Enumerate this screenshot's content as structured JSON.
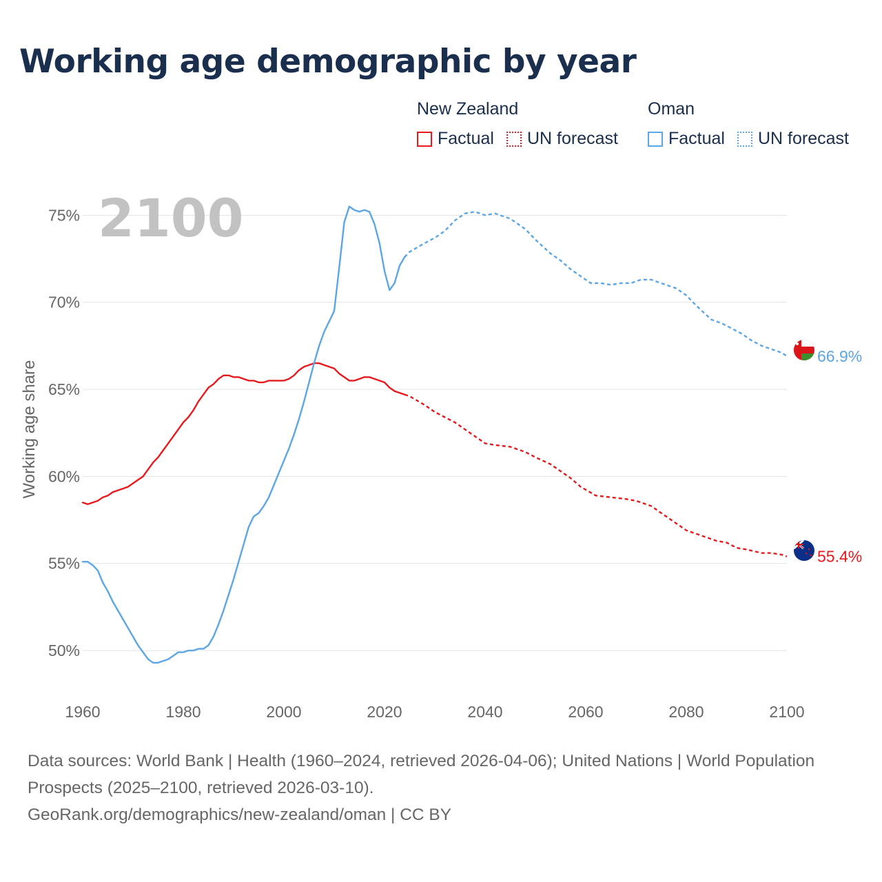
{
  "title": "Working age demographic by year",
  "legend": {
    "groups": [
      {
        "name": "New Zealand",
        "factual_label": "Factual",
        "forecast_label": "UN forecast",
        "color": "#e8191c"
      },
      {
        "name": "Oman",
        "factual_label": "Factual",
        "forecast_label": "UN forecast",
        "color": "#5aa6e6"
      }
    ]
  },
  "footer": {
    "sources": "Data sources: World Bank | Health (1960–2024, retrieved 2026-04-06); United Nations | World Population Prospects (2025–2100, retrieved 2026-03-10).",
    "credit": "GeoRank.org/demographics/new-zealand/oman | CC BY"
  },
  "chart_data": {
    "type": "line",
    "title": "Working age demographic by year",
    "xlabel": "",
    "ylabel": "Working age share",
    "year_label": "2100",
    "xlim": [
      1960,
      2100
    ],
    "ylim": [
      48.5,
      76.2
    ],
    "xticks": [
      1960,
      1980,
      2000,
      2020,
      2040,
      2060,
      2080,
      2100
    ],
    "xtick_labels": [
      "1960",
      "1980",
      "2000",
      "2020",
      "2040",
      "2060",
      "2080",
      "2100"
    ],
    "yticks": [
      50,
      55,
      60,
      65,
      70,
      75
    ],
    "ytick_labels": [
      "50%",
      "55%",
      "60%",
      "65%",
      "70%",
      "75%"
    ],
    "factual_end_year": 2024,
    "series": [
      {
        "name": "New Zealand",
        "color": "#e8191c",
        "end_label": "55.4%",
        "points": [
          [
            1960,
            58.5
          ],
          [
            1961,
            58.4
          ],
          [
            1962,
            58.5
          ],
          [
            1963,
            58.6
          ],
          [
            1964,
            58.8
          ],
          [
            1965,
            58.9
          ],
          [
            1966,
            59.1
          ],
          [
            1967,
            59.2
          ],
          [
            1968,
            59.3
          ],
          [
            1969,
            59.4
          ],
          [
            1970,
            59.6
          ],
          [
            1971,
            59.8
          ],
          [
            1972,
            60.0
          ],
          [
            1973,
            60.4
          ],
          [
            1974,
            60.8
          ],
          [
            1975,
            61.1
          ],
          [
            1976,
            61.5
          ],
          [
            1977,
            61.9
          ],
          [
            1978,
            62.3
          ],
          [
            1979,
            62.7
          ],
          [
            1980,
            63.1
          ],
          [
            1981,
            63.4
          ],
          [
            1982,
            63.8
          ],
          [
            1983,
            64.3
          ],
          [
            1984,
            64.7
          ],
          [
            1985,
            65.1
          ],
          [
            1986,
            65.3
          ],
          [
            1987,
            65.6
          ],
          [
            1988,
            65.8
          ],
          [
            1989,
            65.8
          ],
          [
            1990,
            65.7
          ],
          [
            1991,
            65.7
          ],
          [
            1992,
            65.6
          ],
          [
            1993,
            65.5
          ],
          [
            1994,
            65.5
          ],
          [
            1995,
            65.4
          ],
          [
            1996,
            65.4
          ],
          [
            1997,
            65.5
          ],
          [
            1998,
            65.5
          ],
          [
            1999,
            65.5
          ],
          [
            2000,
            65.5
          ],
          [
            2001,
            65.6
          ],
          [
            2002,
            65.8
          ],
          [
            2003,
            66.1
          ],
          [
            2004,
            66.3
          ],
          [
            2005,
            66.4
          ],
          [
            2006,
            66.5
          ],
          [
            2007,
            66.5
          ],
          [
            2008,
            66.4
          ],
          [
            2009,
            66.3
          ],
          [
            2010,
            66.2
          ],
          [
            2011,
            65.9
          ],
          [
            2012,
            65.7
          ],
          [
            2013,
            65.5
          ],
          [
            2014,
            65.5
          ],
          [
            2015,
            65.6
          ],
          [
            2016,
            65.7
          ],
          [
            2017,
            65.7
          ],
          [
            2018,
            65.6
          ],
          [
            2019,
            65.5
          ],
          [
            2020,
            65.4
          ],
          [
            2021,
            65.1
          ],
          [
            2022,
            64.9
          ],
          [
            2023,
            64.8
          ],
          [
            2024,
            64.7
          ],
          [
            2025,
            64.6
          ],
          [
            2028,
            64.1
          ],
          [
            2030,
            63.7
          ],
          [
            2032,
            63.4
          ],
          [
            2034,
            63.1
          ],
          [
            2036,
            62.7
          ],
          [
            2038,
            62.3
          ],
          [
            2040,
            61.9
          ],
          [
            2042,
            61.8
          ],
          [
            2045,
            61.7
          ],
          [
            2048,
            61.4
          ],
          [
            2050,
            61.1
          ],
          [
            2053,
            60.7
          ],
          [
            2055,
            60.3
          ],
          [
            2057,
            59.9
          ],
          [
            2059,
            59.4
          ],
          [
            2062,
            58.9
          ],
          [
            2065,
            58.8
          ],
          [
            2068,
            58.7
          ],
          [
            2070,
            58.6
          ],
          [
            2073,
            58.3
          ],
          [
            2075,
            57.9
          ],
          [
            2078,
            57.3
          ],
          [
            2080,
            56.9
          ],
          [
            2083,
            56.6
          ],
          [
            2086,
            56.3
          ],
          [
            2088,
            56.2
          ],
          [
            2090,
            55.9
          ],
          [
            2092,
            55.8
          ],
          [
            2095,
            55.6
          ],
          [
            2097,
            55.6
          ],
          [
            2099,
            55.5
          ],
          [
            2100,
            55.4
          ]
        ]
      },
      {
        "name": "Oman",
        "color": "#5aa6e6",
        "end_label": "66.9%",
        "points": [
          [
            1960,
            55.1
          ],
          [
            1961,
            55.1
          ],
          [
            1962,
            54.9
          ],
          [
            1963,
            54.6
          ],
          [
            1964,
            53.9
          ],
          [
            1965,
            53.4
          ],
          [
            1966,
            52.8
          ],
          [
            1967,
            52.3
          ],
          [
            1968,
            51.8
          ],
          [
            1969,
            51.3
          ],
          [
            1970,
            50.8
          ],
          [
            1971,
            50.3
          ],
          [
            1972,
            49.9
          ],
          [
            1973,
            49.5
          ],
          [
            1974,
            49.3
          ],
          [
            1975,
            49.3
          ],
          [
            1976,
            49.4
          ],
          [
            1977,
            49.5
          ],
          [
            1978,
            49.7
          ],
          [
            1979,
            49.9
          ],
          [
            1980,
            49.9
          ],
          [
            1981,
            50.0
          ],
          [
            1982,
            50.0
          ],
          [
            1983,
            50.1
          ],
          [
            1984,
            50.1
          ],
          [
            1985,
            50.3
          ],
          [
            1986,
            50.8
          ],
          [
            1987,
            51.5
          ],
          [
            1988,
            52.3
          ],
          [
            1989,
            53.2
          ],
          [
            1990,
            54.1
          ],
          [
            1991,
            55.1
          ],
          [
            1992,
            56.1
          ],
          [
            1993,
            57.1
          ],
          [
            1994,
            57.7
          ],
          [
            1995,
            57.9
          ],
          [
            1996,
            58.3
          ],
          [
            1997,
            58.8
          ],
          [
            1998,
            59.5
          ],
          [
            1999,
            60.2
          ],
          [
            2000,
            60.9
          ],
          [
            2001,
            61.6
          ],
          [
            2002,
            62.4
          ],
          [
            2003,
            63.3
          ],
          [
            2004,
            64.3
          ],
          [
            2005,
            65.4
          ],
          [
            2006,
            66.5
          ],
          [
            2007,
            67.5
          ],
          [
            2008,
            68.3
          ],
          [
            2009,
            68.9
          ],
          [
            2010,
            69.5
          ],
          [
            2011,
            72.0
          ],
          [
            2012,
            74.6
          ],
          [
            2013,
            75.5
          ],
          [
            2014,
            75.3
          ],
          [
            2015,
            75.2
          ],
          [
            2016,
            75.3
          ],
          [
            2017,
            75.2
          ],
          [
            2018,
            74.5
          ],
          [
            2019,
            73.4
          ],
          [
            2020,
            71.8
          ],
          [
            2021,
            70.7
          ],
          [
            2022,
            71.1
          ],
          [
            2023,
            72.1
          ],
          [
            2024,
            72.6
          ],
          [
            2025,
            72.9
          ],
          [
            2028,
            73.4
          ],
          [
            2030,
            73.7
          ],
          [
            2032,
            74.1
          ],
          [
            2034,
            74.7
          ],
          [
            2036,
            75.1
          ],
          [
            2038,
            75.2
          ],
          [
            2040,
            75.0
          ],
          [
            2042,
            75.1
          ],
          [
            2045,
            74.8
          ],
          [
            2048,
            74.2
          ],
          [
            2050,
            73.6
          ],
          [
            2053,
            72.8
          ],
          [
            2055,
            72.4
          ],
          [
            2057,
            71.9
          ],
          [
            2059,
            71.5
          ],
          [
            2061,
            71.1
          ],
          [
            2063,
            71.1
          ],
          [
            2065,
            71.0
          ],
          [
            2067,
            71.1
          ],
          [
            2069,
            71.1
          ],
          [
            2071,
            71.3
          ],
          [
            2073,
            71.3
          ],
          [
            2075,
            71.1
          ],
          [
            2078,
            70.8
          ],
          [
            2080,
            70.4
          ],
          [
            2082,
            69.8
          ],
          [
            2085,
            69.0
          ],
          [
            2087,
            68.8
          ],
          [
            2089,
            68.5
          ],
          [
            2091,
            68.2
          ],
          [
            2093,
            67.8
          ],
          [
            2095,
            67.5
          ],
          [
            2097,
            67.3
          ],
          [
            2099,
            67.1
          ],
          [
            2100,
            66.9
          ]
        ]
      }
    ]
  }
}
